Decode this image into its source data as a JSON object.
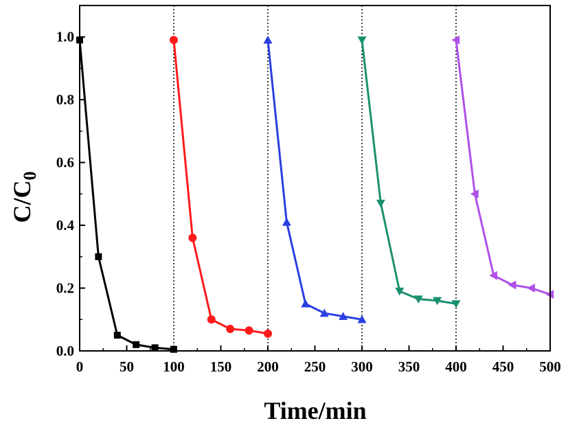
{
  "chart_data": {
    "type": "line",
    "xlabel": "Time/min",
    "ylabel": "C/C",
    "ylabel_subscript": "0",
    "xlim": [
      0,
      500
    ],
    "ylim": [
      0,
      1.1
    ],
    "xticks": [
      "0",
      "50",
      "100",
      "150",
      "200",
      "250",
      "300",
      "350",
      "400",
      "450",
      "500"
    ],
    "yticks": [
      "0.0",
      "0.2",
      "0.4",
      "0.6",
      "0.8",
      "1.0"
    ],
    "grid": false,
    "legend": "none",
    "vlines": [
      100,
      200,
      300,
      400
    ],
    "series": [
      {
        "color": "#000000",
        "marker": "square",
        "x": [
          0,
          20,
          40,
          60,
          80,
          100
        ],
        "y": [
          0.99,
          0.3,
          0.05,
          0.02,
          0.01,
          0.005
        ]
      },
      {
        "color": "#ff1a1a",
        "marker": "circle",
        "x": [
          100,
          120,
          140,
          160,
          180,
          200
        ],
        "y": [
          0.99,
          0.36,
          0.1,
          0.07,
          0.065,
          0.055
        ]
      },
      {
        "color": "#2a3fe0",
        "marker": "triangle-up",
        "x": [
          200,
          220,
          240,
          260,
          280,
          300
        ],
        "y": [
          0.99,
          0.41,
          0.15,
          0.12,
          0.11,
          0.1
        ]
      },
      {
        "color": "#1a9070",
        "marker": "triangle-down",
        "x": [
          300,
          320,
          340,
          360,
          380,
          400
        ],
        "y": [
          0.99,
          0.47,
          0.19,
          0.165,
          0.16,
          0.15
        ]
      },
      {
        "color": "#b050e8",
        "marker": "triangle-left",
        "x": [
          400,
          420,
          440,
          460,
          480,
          500
        ],
        "y": [
          0.99,
          0.5,
          0.24,
          0.21,
          0.2,
          0.18
        ]
      }
    ]
  }
}
